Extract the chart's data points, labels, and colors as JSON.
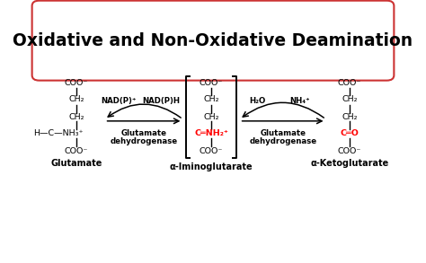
{
  "title": "Oxidative and Non-Oxidative Deamination",
  "bg_color": "#ffffff",
  "title_box_facecolor": "#ffffff",
  "title_border_color": "#cc3333",
  "title_fontsize": 13.5,
  "diagram_fontsize": 6.8,
  "small_fontsize": 6.2,
  "label_glutamate": "Glutamate",
  "label_iminoglutarate": "α-Iminoglutarate",
  "label_ketoglutarate": "α-Ketoglutarate",
  "nadp_plus": "NAD(P)⁺",
  "nadph": "NAD(P)H",
  "h2o": "H₂O",
  "nh4_plus": "NH₄⁺",
  "glutamate_dh": "Glutamate",
  "dehydrogenase": "dehydrogenase",
  "coo_minus": "COO⁻",
  "ch2": "CH₂",
  "c_imino": "C═NH₂⁺",
  "c_keto": "C═O",
  "hcnh3": "H—C—NH₃⁺"
}
